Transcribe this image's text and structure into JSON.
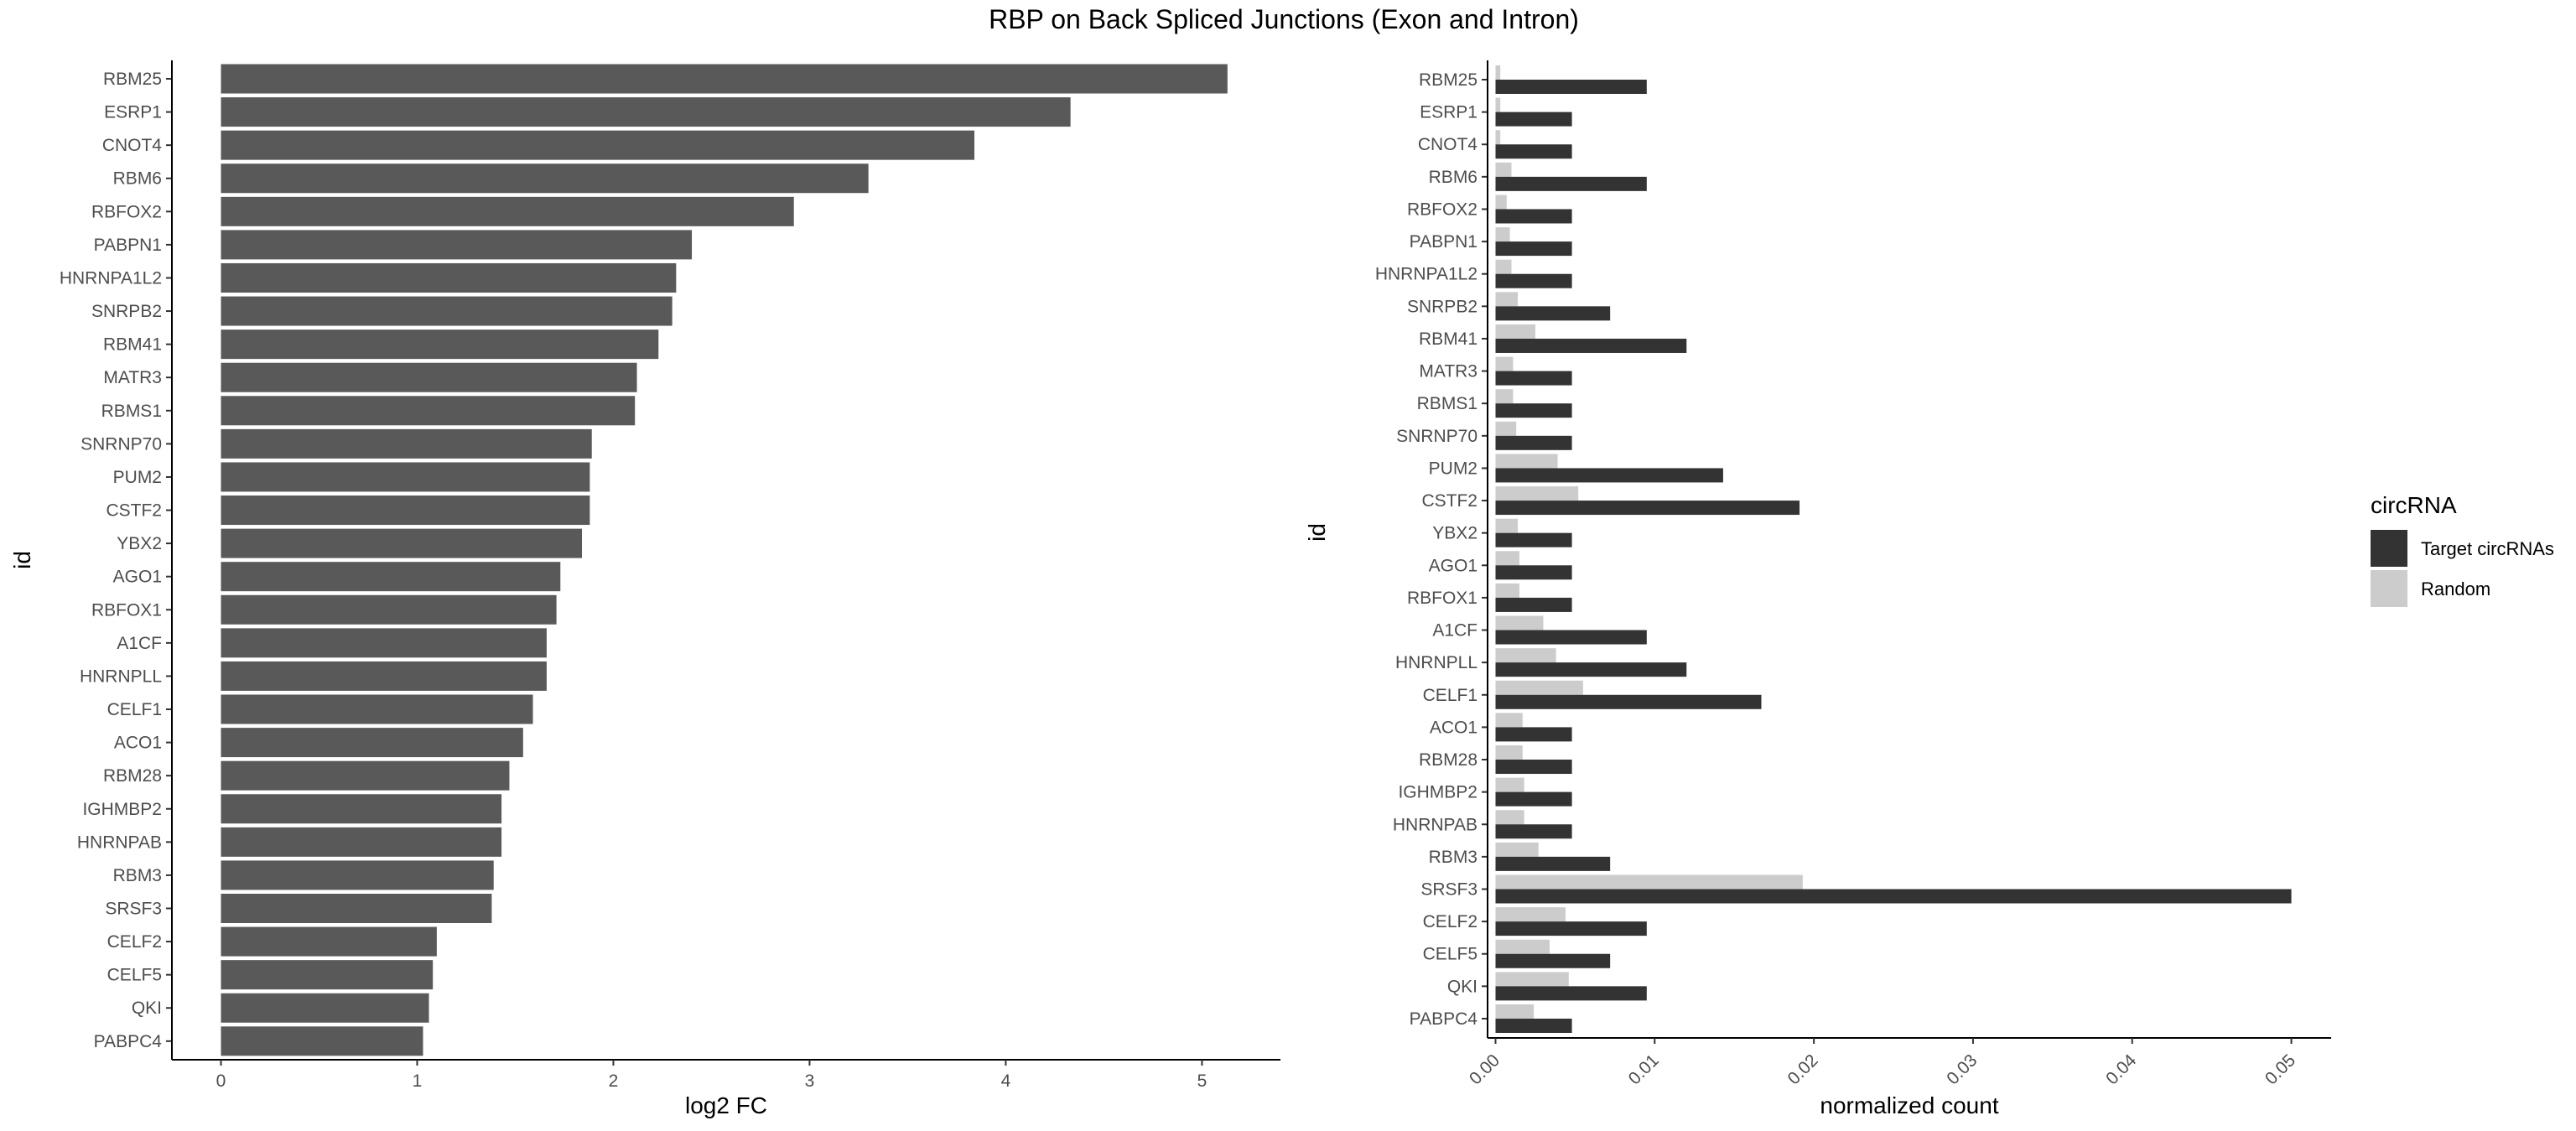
{
  "title": "RBP on Back Spliced Junctions (Exon and Intron)",
  "chart_data": [
    {
      "type": "bar",
      "orientation": "horizontal",
      "xlabel": "log2 FC",
      "ylabel": "id",
      "xlim": [
        -0.25,
        5.4
      ],
      "xticks": [
        0,
        1,
        2,
        3,
        4,
        5
      ],
      "bar_color": "#595959",
      "categories": [
        "RBM25",
        "ESRP1",
        "CNOT4",
        "RBM6",
        "RBFOX2",
        "PABPN1",
        "HNRNPA1L2",
        "SNRPB2",
        "RBM41",
        "MATR3",
        "RBMS1",
        "SNRNP70",
        "PUM2",
        "CSTF2",
        "YBX2",
        "AGO1",
        "RBFOX1",
        "A1CF",
        "HNRNPLL",
        "CELF1",
        "ACO1",
        "RBM28",
        "IGHMBP2",
        "HNRNPAB",
        "RBM3",
        "SRSF3",
        "CELF2",
        "CELF5",
        "QKI",
        "PABPC4"
      ],
      "values": [
        5.13,
        4.33,
        3.84,
        3.3,
        2.92,
        2.4,
        2.32,
        2.3,
        2.23,
        2.12,
        2.11,
        1.89,
        1.88,
        1.88,
        1.84,
        1.73,
        1.71,
        1.66,
        1.66,
        1.59,
        1.54,
        1.47,
        1.43,
        1.43,
        1.39,
        1.38,
        1.1,
        1.08,
        1.06,
        1.03
      ]
    },
    {
      "type": "bar",
      "orientation": "horizontal",
      "grouped": true,
      "xlabel": "normalized count",
      "ylabel": "id",
      "xlim": [
        -0.0005,
        0.0525
      ],
      "xticks": [
        0.0,
        0.01,
        0.02,
        0.03,
        0.04,
        0.05
      ],
      "xtick_labels": [
        "0.00",
        "0.01",
        "0.02",
        "0.03",
        "0.04",
        "0.05"
      ],
      "categories": [
        "RBM25",
        "ESRP1",
        "CNOT4",
        "RBM6",
        "RBFOX2",
        "PABPN1",
        "HNRNPA1L2",
        "SNRPB2",
        "RBM41",
        "MATR3",
        "RBMS1",
        "SNRNP70",
        "PUM2",
        "CSTF2",
        "YBX2",
        "AGO1",
        "RBFOX1",
        "A1CF",
        "HNRNPLL",
        "CELF1",
        "ACO1",
        "RBM28",
        "IGHMBP2",
        "HNRNPAB",
        "RBM3",
        "SRSF3",
        "CELF2",
        "CELF5",
        "QKI",
        "PABPC4"
      ],
      "legend": {
        "title": "circRNA",
        "position": "right"
      },
      "series": [
        {
          "name": "Target circRNAs",
          "color": "#333333",
          "values": [
            0.0095,
            0.0048,
            0.0048,
            0.0095,
            0.0048,
            0.0048,
            0.0048,
            0.0072,
            0.012,
            0.0048,
            0.0048,
            0.0048,
            0.0143,
            0.0191,
            0.0048,
            0.0048,
            0.0048,
            0.0095,
            0.012,
            0.0167,
            0.0048,
            0.0048,
            0.0048,
            0.0048,
            0.0072,
            0.05,
            0.0095,
            0.0072,
            0.0095,
            0.0048
          ]
        },
        {
          "name": "Random",
          "color": "#cccccc",
          "values": [
            0.0003,
            0.0003,
            0.0003,
            0.001,
            0.0007,
            0.0009,
            0.001,
            0.0014,
            0.0025,
            0.0011,
            0.0011,
            0.0013,
            0.0039,
            0.0052,
            0.0014,
            0.0015,
            0.0015,
            0.003,
            0.0038,
            0.0055,
            0.0017,
            0.0017,
            0.0018,
            0.0018,
            0.0027,
            0.0193,
            0.0044,
            0.0034,
            0.0046,
            0.0024
          ]
        }
      ]
    }
  ]
}
